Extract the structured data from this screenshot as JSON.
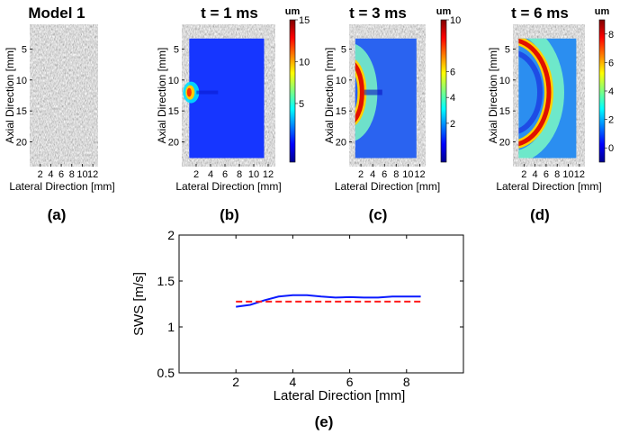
{
  "chart_data": [
    {
      "panel_label": "(a)",
      "type": "heatmap",
      "title": "Model 1",
      "xlabel": "Lateral Direction [mm]",
      "ylabel": "Axial Direction [mm]",
      "xticks": [
        "2",
        "4",
        "6",
        "8",
        "10",
        "12"
      ],
      "yticks": [
        "5",
        "10",
        "15",
        "20"
      ],
      "xlim": [
        0,
        13
      ],
      "ylim": [
        1,
        24
      ],
      "image": "B-mode speckle (grayscale)"
    },
    {
      "panel_label": "(b)",
      "type": "heatmap",
      "title": "t = 1 ms",
      "xlabel": "Lateral Direction [mm]",
      "ylabel": "Axial Direction [mm]",
      "xticks": [
        "2",
        "4",
        "6",
        "8",
        "10",
        "12"
      ],
      "yticks": [
        "5",
        "10",
        "15",
        "20"
      ],
      "xlim": [
        0,
        13
      ],
      "ylim": [
        1,
        24
      ],
      "colorbar": {
        "unit": "um",
        "ticks": [
          "5",
          "10",
          "15"
        ],
        "range": [
          -2,
          15
        ]
      },
      "wavefront_x_mm": 0.6
    },
    {
      "panel_label": "(c)",
      "type": "heatmap",
      "title": "t = 3 ms",
      "xlabel": "Lateral Direction [mm]",
      "ylabel": "Axial Direction [mm]",
      "xticks": [
        "2",
        "4",
        "6",
        "8",
        "10",
        "12"
      ],
      "yticks": [
        "5",
        "10",
        "15",
        "20"
      ],
      "xlim": [
        0,
        13
      ],
      "ylim": [
        1,
        24
      ],
      "colorbar": {
        "unit": "um",
        "ticks": [
          "2",
          "4",
          "6",
          "10"
        ],
        "range": [
          -1,
          10
        ]
      },
      "wavefront_x_mm": 2.2
    },
    {
      "panel_label": "(d)",
      "type": "heatmap",
      "title": "t = 6 ms",
      "xlabel": "Lateral Direction [mm]",
      "ylabel": "Axial Direction [mm]",
      "xticks": [
        "2",
        "4",
        "6",
        "8",
        "10",
        "12"
      ],
      "yticks": [
        "5",
        "10",
        "15",
        "20"
      ],
      "xlim": [
        0,
        13
      ],
      "ylim": [
        1,
        24
      ],
      "colorbar": {
        "unit": "um",
        "ticks": [
          "0",
          "2",
          "4",
          "6",
          "8"
        ],
        "range": [
          -1,
          9
        ]
      },
      "wavefront_x_mm": 6.5
    },
    {
      "panel_label": "(e)",
      "type": "line",
      "title": "",
      "xlabel": "Lateral Direction [mm]",
      "ylabel": "SWS [m/s]",
      "xlim": [
        0,
        10
      ],
      "ylim": [
        0.5,
        2
      ],
      "xticks": [
        "2",
        "4",
        "6",
        "8"
      ],
      "yticks": [
        "0.5",
        "1",
        "1.5",
        "2"
      ],
      "series": [
        {
          "style": "solid",
          "color": "#0a1aff",
          "x": [
            2.0,
            2.5,
            3.0,
            3.5,
            4.0,
            4.5,
            5.0,
            5.5,
            6.0,
            6.5,
            7.0,
            7.5,
            8.0,
            8.5
          ],
          "y": [
            1.22,
            1.24,
            1.29,
            1.33,
            1.345,
            1.345,
            1.33,
            1.32,
            1.325,
            1.32,
            1.32,
            1.33,
            1.33,
            1.33
          ]
        },
        {
          "style": "dashed",
          "color": "#ff1a1a",
          "x": [
            2.0,
            8.5
          ],
          "y": [
            1.275,
            1.275
          ]
        }
      ]
    }
  ]
}
